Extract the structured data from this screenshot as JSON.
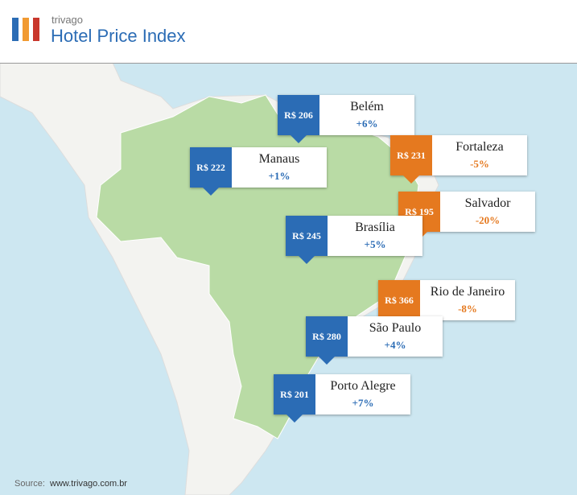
{
  "header": {
    "brand": "trivago",
    "title": "Hotel Price Index"
  },
  "cities": [
    {
      "name": "Belém",
      "price": "R$ 206",
      "change": "+6%",
      "color": "#2b6cb5"
    },
    {
      "name": "Manaus",
      "price": "R$ 222",
      "change": "+1%",
      "color": "#2b6cb5"
    },
    {
      "name": "Fortaleza",
      "price": "R$ 231",
      "change": "-5%",
      "color": "#e5791f"
    },
    {
      "name": "Salvador",
      "price": "R$ 195",
      "change": "-20%",
      "color": "#e5791f"
    },
    {
      "name": "Brasília",
      "price": "R$ 245",
      "change": "+5%",
      "color": "#2b6cb5"
    },
    {
      "name": "Rio de Janeiro",
      "price": "R$ 366",
      "change": "-8%",
      "color": "#e5791f"
    },
    {
      "name": "São Paulo",
      "price": "R$ 280",
      "change": "+4%",
      "color": "#2b6cb5"
    },
    {
      "name": "Porto Alegre",
      "price": "R$ 201",
      "change": "+7%",
      "color": "#2b6cb5"
    }
  ],
  "footer": {
    "label": "Source:",
    "url": "www.trivago.com.br"
  }
}
